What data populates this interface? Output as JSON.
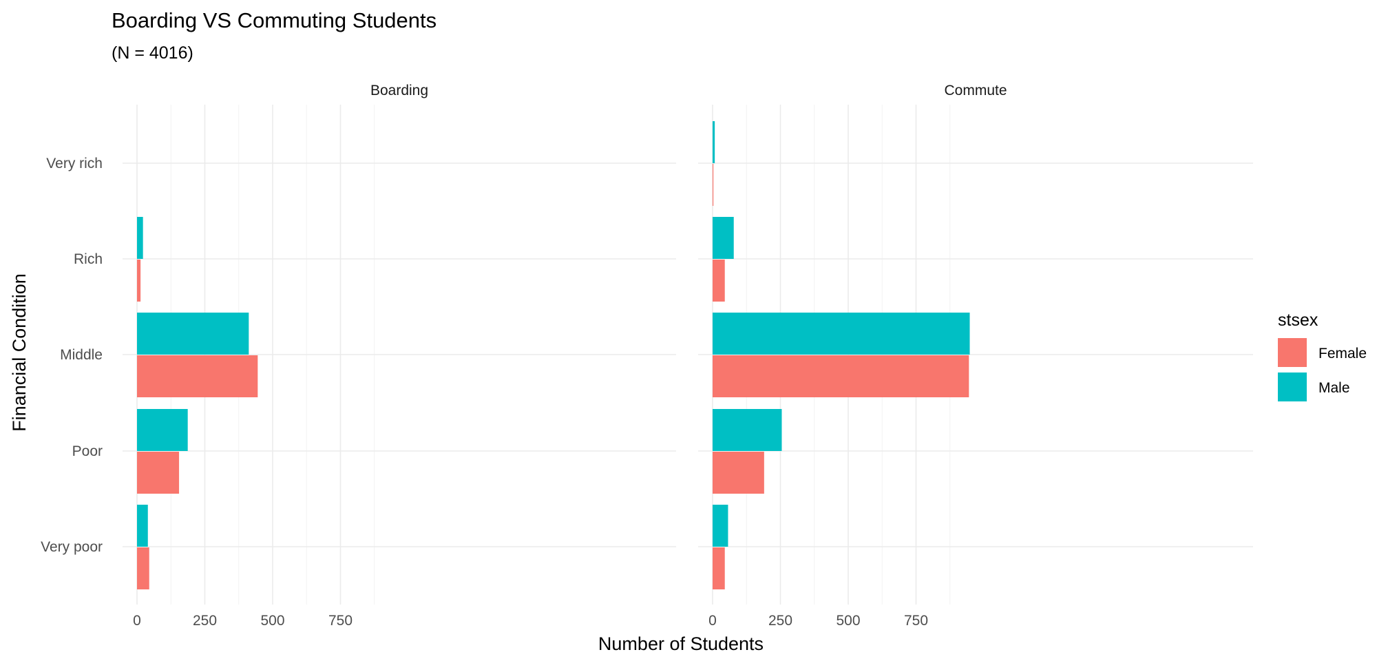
{
  "chart_data": {
    "type": "bar",
    "orientation": "horizontal",
    "title": "Boarding VS Commuting Students",
    "subtitle": "(N = 4016)",
    "xlabel": "Number of Students",
    "ylabel": "Financial Condition",
    "xlim": [
      0,
      1000
    ],
    "xticks": [
      "0",
      "250",
      "500",
      "750"
    ],
    "xtick_values": [
      0,
      250,
      500,
      750
    ],
    "categories": [
      "Very poor",
      "Poor",
      "Middle",
      "Rich",
      "Very rich"
    ],
    "grid": true,
    "legend_position": "right",
    "legend": {
      "title": "stsex",
      "entries": [
        {
          "name": "Female",
          "color": "#F8766D"
        },
        {
          "name": "Male",
          "color": "#00BFC4"
        }
      ]
    },
    "panels": [
      {
        "label": "Boarding",
        "series": [
          {
            "name": "Female",
            "values": [
              45,
              155,
              445,
              13,
              0
            ]
          },
          {
            "name": "Male",
            "values": [
              40,
              187,
              412,
              22,
              0
            ]
          }
        ]
      },
      {
        "label": "Commute",
        "series": [
          {
            "name": "Female",
            "values": [
              45,
              190,
              945,
              45,
              3
            ]
          },
          {
            "name": "Male",
            "values": [
              57,
              255,
              948,
              78,
              8
            ]
          }
        ]
      }
    ]
  }
}
